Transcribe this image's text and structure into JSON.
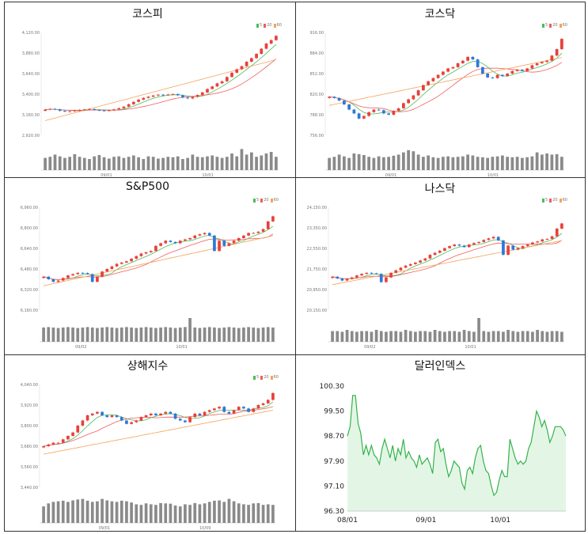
{
  "chart_data": [
    {
      "type": "candlestick",
      "title": "코스피",
      "legend": [
        "5",
        "20",
        "60"
      ],
      "y_ticks": [
        "4,120.00",
        "3,880.00",
        "3,640.00",
        "3,400.00",
        "3,160.00",
        "2,920.00"
      ],
      "y_range": [
        2920,
        4120
      ],
      "x_ticks": [
        "09/01",
        "10/01"
      ],
      "close": [
        3220,
        3228,
        3222,
        3205,
        3198,
        3200,
        3210,
        3215,
        3222,
        3226,
        3216,
        3210,
        3206,
        3212,
        3222,
        3236,
        3254,
        3282,
        3310,
        3336,
        3356,
        3370,
        3384,
        3394,
        3390,
        3396,
        3401,
        3387,
        3360,
        3350,
        3368,
        3390,
        3420,
        3460,
        3490,
        3526,
        3550,
        3600,
        3650,
        3690,
        3726,
        3778,
        3820,
        3870,
        3930,
        3990,
        4030,
        4080
      ],
      "volume": [
        0.55,
        0.6,
        0.7,
        0.62,
        0.55,
        0.6,
        0.72,
        0.6,
        0.55,
        0.5,
        0.62,
        0.68,
        0.58,
        0.52,
        0.6,
        0.62,
        0.55,
        0.6,
        0.66,
        0.58,
        0.5,
        0.62,
        0.6,
        0.52,
        0.55,
        0.6,
        0.58,
        0.62,
        0.5,
        0.55,
        0.7,
        0.6,
        0.58,
        0.62,
        0.66,
        0.6,
        0.55,
        0.6,
        0.75,
        0.62,
        0.95,
        0.7,
        0.8,
        0.6,
        0.66,
        0.75,
        0.82,
        0.6
      ]
    },
    {
      "type": "candlestick",
      "title": "코스닥",
      "legend": [
        "5",
        "20",
        "60"
      ],
      "y_ticks": [
        "916.00",
        "884.00",
        "852.00",
        "820.00",
        "788.00",
        "756.00"
      ],
      "y_range": [
        756,
        916
      ],
      "x_ticks": [
        "09/01",
        "10/01"
      ],
      "close": [
        816,
        814,
        810,
        804,
        796,
        790,
        782,
        786,
        792,
        796,
        795,
        790,
        788,
        794,
        798,
        806,
        812,
        818,
        826,
        834,
        840,
        845,
        850,
        855,
        860,
        862,
        868,
        872,
        878,
        874,
        862,
        852,
        846,
        845,
        850,
        848,
        852,
        856,
        858,
        856,
        860,
        865,
        868,
        870,
        872,
        880,
        890,
        906
      ],
      "volume": [
        0.55,
        0.6,
        0.7,
        0.62,
        0.55,
        0.75,
        0.72,
        0.68,
        0.6,
        0.55,
        0.62,
        0.58,
        0.6,
        0.65,
        0.7,
        0.8,
        0.9,
        0.85,
        0.7,
        0.6,
        0.66,
        0.58,
        0.55,
        0.6,
        0.62,
        0.58,
        0.6,
        0.62,
        0.7,
        0.66,
        0.6,
        0.58,
        0.55,
        0.6,
        0.62,
        0.66,
        0.6,
        0.58,
        0.6,
        0.55,
        0.58,
        0.62,
        0.8,
        0.7,
        0.75,
        0.7,
        0.72,
        0.6
      ]
    },
    {
      "type": "candlestick",
      "title": "S&P500",
      "legend": [
        "5",
        "20",
        "60"
      ],
      "y_ticks": [
        "6,960.00",
        "6,800.00",
        "6,640.00",
        "6,480.00",
        "6,320.00",
        "6,160.00"
      ],
      "y_range": [
        6160,
        6960
      ],
      "x_ticks": [
        "09/02",
        "10/01"
      ],
      "close": [
        6420,
        6400,
        6380,
        6390,
        6410,
        6430,
        6440,
        6450,
        6448,
        6440,
        6380,
        6420,
        6460,
        6480,
        6500,
        6520,
        6530,
        6540,
        6560,
        6580,
        6600,
        6610,
        6620,
        6660,
        6680,
        6700,
        6690,
        6680,
        6700,
        6710,
        6720,
        6740,
        6750,
        6760,
        6740,
        6620,
        6700,
        6660,
        6680,
        6700,
        6720,
        6740,
        6760,
        6760,
        6770,
        6790,
        6850,
        6890
      ],
      "volume": [
        0.6,
        0.62,
        0.6,
        0.58,
        0.6,
        0.62,
        0.6,
        0.58,
        0.6,
        0.62,
        0.6,
        0.58,
        0.6,
        0.62,
        0.6,
        0.58,
        0.6,
        0.62,
        0.6,
        0.58,
        0.6,
        0.62,
        0.6,
        0.58,
        0.6,
        0.62,
        0.6,
        0.58,
        0.6,
        0.62,
        1.0,
        0.6,
        0.58,
        0.6,
        0.62,
        0.6,
        0.58,
        0.6,
        0.62,
        0.6,
        0.58,
        0.6,
        0.62,
        0.6,
        0.58,
        0.6,
        0.62,
        0.6
      ]
    },
    {
      "type": "candlestick",
      "title": "나스닥",
      "legend": [
        "5",
        "20",
        "60"
      ],
      "y_ticks": [
        "24,150.00",
        "23,350.00",
        "22,550.00",
        "21,750.00",
        "20,950.00",
        "20,150.00"
      ],
      "y_range": [
        20150,
        24150
      ],
      "x_ticks": [
        "09/02",
        "10/01"
      ],
      "close": [
        21450,
        21380,
        21300,
        21360,
        21420,
        21500,
        21560,
        21600,
        21580,
        21560,
        21240,
        21420,
        21600,
        21700,
        21800,
        21880,
        21940,
        22000,
        22080,
        22160,
        22300,
        22380,
        22460,
        22560,
        22640,
        22700,
        22660,
        22600,
        22700,
        22760,
        22800,
        22880,
        22940,
        23000,
        22860,
        22300,
        22660,
        22500,
        22560,
        22640,
        22700,
        22780,
        22820,
        22900,
        22920,
        23020,
        23320,
        23520
      ],
      "volume": [
        0.45,
        0.45,
        0.42,
        0.5,
        0.45,
        0.42,
        0.45,
        0.45,
        0.42,
        0.5,
        0.45,
        0.42,
        0.45,
        0.45,
        0.42,
        0.5,
        0.45,
        0.42,
        0.45,
        0.45,
        0.42,
        0.5,
        0.45,
        0.42,
        0.45,
        0.45,
        0.42,
        0.5,
        0.45,
        0.42,
        1.0,
        0.45,
        0.42,
        0.45,
        0.45,
        0.42,
        0.5,
        0.45,
        0.42,
        0.45,
        0.45,
        0.42,
        0.5,
        0.45,
        0.42,
        0.45,
        0.45,
        0.42
      ]
    },
    {
      "type": "candlestick",
      "title": "상해지수",
      "legend": [
        "5",
        "20",
        "60"
      ],
      "y_ticks": [
        "4,040.00",
        "3,920.00",
        "3,800.00",
        "3,680.00",
        "3,560.00",
        "3,440.00"
      ],
      "y_range": [
        3440,
        4040
      ],
      "x_ticks": [
        "09/01",
        "10/09"
      ],
      "close": [
        3680,
        3690,
        3700,
        3700,
        3720,
        3740,
        3760,
        3800,
        3830,
        3860,
        3870,
        3880,
        3860,
        3850,
        3860,
        3850,
        3830,
        3810,
        3820,
        3830,
        3850,
        3860,
        3870,
        3860,
        3870,
        3880,
        3870,
        3840,
        3830,
        3820,
        3850,
        3870,
        3860,
        3880,
        3890,
        3900,
        3910,
        3880,
        3870,
        3890,
        3910,
        3900,
        3880,
        3900,
        3920,
        3930,
        3950,
        3990
      ],
      "volume": [
        0.55,
        0.65,
        0.7,
        0.72,
        0.74,
        0.7,
        0.75,
        0.78,
        0.8,
        0.74,
        0.7,
        0.72,
        0.8,
        0.75,
        0.72,
        0.7,
        0.74,
        0.72,
        0.68,
        0.62,
        0.6,
        0.65,
        0.62,
        0.6,
        0.66,
        0.65,
        0.64,
        0.58,
        0.55,
        0.62,
        0.6,
        0.66,
        0.62,
        0.65,
        0.7,
        0.74,
        0.75,
        0.7,
        0.8,
        0.72,
        0.65,
        0.62,
        0.6,
        0.65,
        0.66,
        0.6,
        0.62,
        0.6
      ]
    },
    {
      "type": "area",
      "title": "달러인덱스",
      "y_ticks": [
        "100.30",
        "99.50",
        "98.70",
        "97.90",
        "97.10",
        "96.30"
      ],
      "y_range": [
        96.3,
        100.3
      ],
      "x_ticks": [
        "08/01",
        "09/01",
        "10/01"
      ],
      "values": [
        98.7,
        99.0,
        100.0,
        100.0,
        99.1,
        98.8,
        98.1,
        98.4,
        98.1,
        98.4,
        98.1,
        98.0,
        97.8,
        98.3,
        98.6,
        98.3,
        98.0,
        98.4,
        97.9,
        98.3,
        98.1,
        98.6,
        98.0,
        98.2,
        98.0,
        97.9,
        97.7,
        98.1,
        97.8,
        97.9,
        98.0,
        97.8,
        97.5,
        98.5,
        98.6,
        98.2,
        98.3,
        97.8,
        97.4,
        97.6,
        97.9,
        97.8,
        97.7,
        97.2,
        97.0,
        97.6,
        97.7,
        97.5,
        98.0,
        98.3,
        98.4,
        97.9,
        97.6,
        97.5,
        97.1,
        96.8,
        96.9,
        97.3,
        97.6,
        97.4,
        97.4,
        98.6,
        98.3,
        98.0,
        97.8,
        97.9,
        97.8,
        97.9,
        98.3,
        98.5,
        99.0,
        99.5,
        99.3,
        99.0,
        99.2,
        98.9,
        98.5,
        98.7,
        99.0,
        99.0,
        99.0,
        98.9,
        98.7
      ],
      "color": "#34b34a",
      "fill": "#e3f6e6"
    }
  ]
}
